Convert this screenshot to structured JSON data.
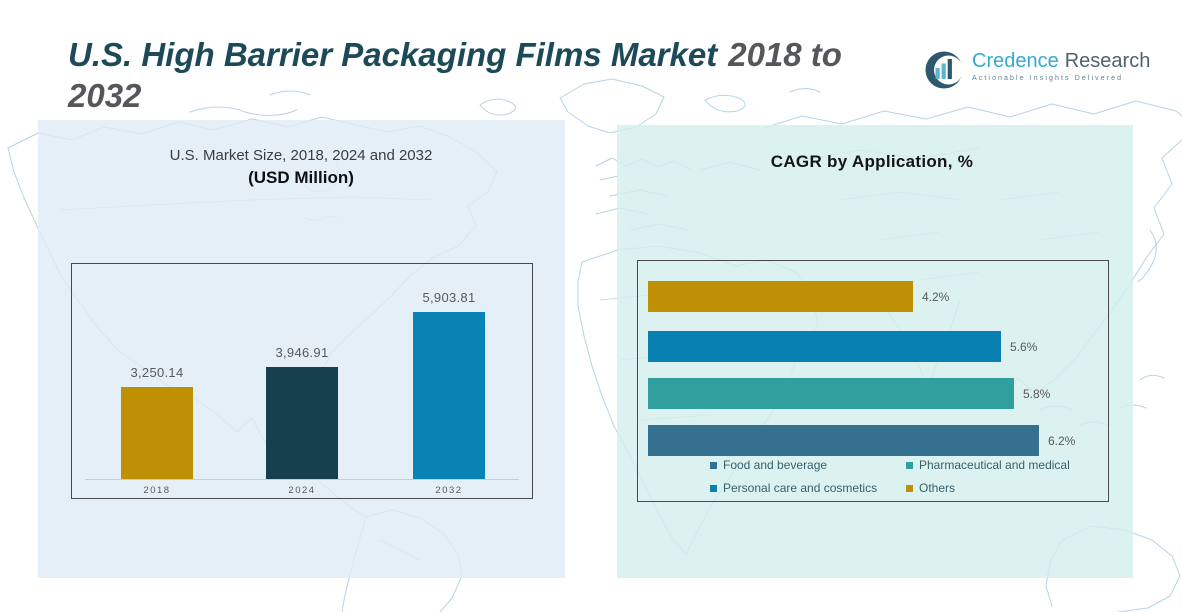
{
  "header": {
    "title_main": "U.S. High Barrier Packaging Films Market",
    "title_years_l1": "2018 to",
    "title_years_l2": "2032",
    "logo": {
      "brand_primary": "Credence",
      "brand_secondary": "Research",
      "tagline": "Actionable Insights Delivered"
    }
  },
  "colors": {
    "title_teal": "#1d4a58",
    "title_gray": "#55575b",
    "panel_left_bg": "#e7eff6",
    "panel_right_bg": "#def2f1",
    "map_line": "#a9cddd",
    "gold": "#bf8f04",
    "dark_navy": "#17404f",
    "bright_blue": "#0883b4",
    "teal": "#2fa09d",
    "steel_blue": "#34708f",
    "value_label_gray": "#595959"
  },
  "chart_data": [
    {
      "type": "bar",
      "title": "U.S. Market Size, 2018, 2024 and 2032",
      "subtitle": "(USD Million)",
      "categories": [
        "2018",
        "2024",
        "2032"
      ],
      "values": [
        3250.14,
        3946.91,
        5903.81
      ],
      "value_labels": [
        "3,250.14",
        "3,946.91",
        "5,903.81"
      ],
      "bar_colors": [
        "#bf8f04",
        "#17404f",
        "#0883b4"
      ],
      "xlabel": "",
      "ylabel": "",
      "ylim": [
        0,
        5903.81
      ],
      "grid": false,
      "legend_position": "none"
    },
    {
      "type": "bar-horizontal",
      "title": "CAGR by Application, %",
      "categories": [
        "Others",
        "Personal care and cosmetics",
        "Pharmaceutical and medical",
        "Food and beverage"
      ],
      "values": [
        4.2,
        5.6,
        5.8,
        6.2
      ],
      "value_labels": [
        "4.2%",
        "5.6%",
        "5.8%",
        "6.2%"
      ],
      "bar_colors": [
        "#bf8f04",
        "#0881b2",
        "#2fa09d",
        "#34708f"
      ],
      "xlabel": "",
      "ylabel": "",
      "xlim": [
        0,
        6.2
      ],
      "grid": false,
      "legend_position": "bottom-inside",
      "legend": [
        {
          "label": "Food and beverage",
          "color": "#34708f"
        },
        {
          "label": "Pharmaceutical and medical",
          "color": "#2fa09d"
        },
        {
          "label": "Personal care and cosmetics",
          "color": "#0881b2"
        },
        {
          "label": "Others",
          "color": "#bf8f04"
        }
      ]
    }
  ]
}
